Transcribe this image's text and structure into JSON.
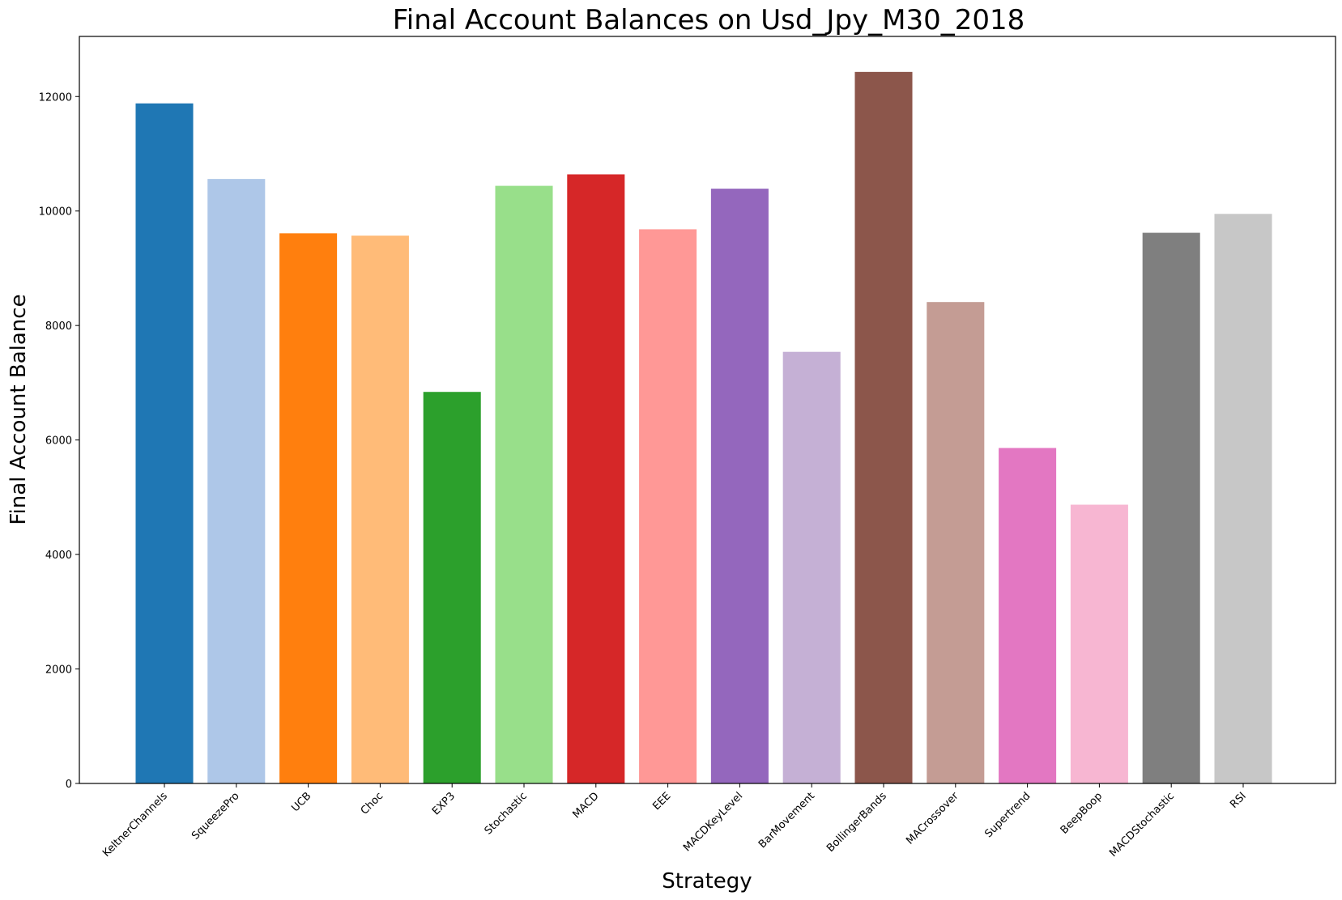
{
  "chart_data": {
    "type": "bar",
    "title": "Final Account Balances on Usd_Jpy_M30_2018",
    "xlabel": "Strategy",
    "ylabel": "Final Account Balance",
    "ylim": [
      0,
      13050
    ],
    "yticks": [
      0,
      2000,
      4000,
      6000,
      8000,
      10000,
      12000
    ],
    "grid": false,
    "categories": [
      "KeltnerChannels",
      "SqueezePro",
      "UCB",
      "Choc",
      "EXP3",
      "Stochastic",
      "MACD",
      "EEE",
      "MACDKeyLevel",
      "BarMovement",
      "BollingerBands",
      "MACrossover",
      "Supertrend",
      "BeepBoop",
      "MACDStochastic",
      "RSI"
    ],
    "values": [
      11880,
      10560,
      9610,
      9570,
      6840,
      10440,
      10640,
      9680,
      10390,
      7540,
      12430,
      8410,
      5860,
      4870,
      9620,
      9950
    ],
    "colors": [
      "#1f77b4",
      "#aec7e8",
      "#ff7f0e",
      "#ffbb78",
      "#2ca02c",
      "#98df8a",
      "#d62728",
      "#ff9896",
      "#9467bd",
      "#c5b0d5",
      "#8c564b",
      "#c49c94",
      "#e377c2",
      "#f7b6d2",
      "#7f7f7f",
      "#c7c7c7"
    ]
  }
}
